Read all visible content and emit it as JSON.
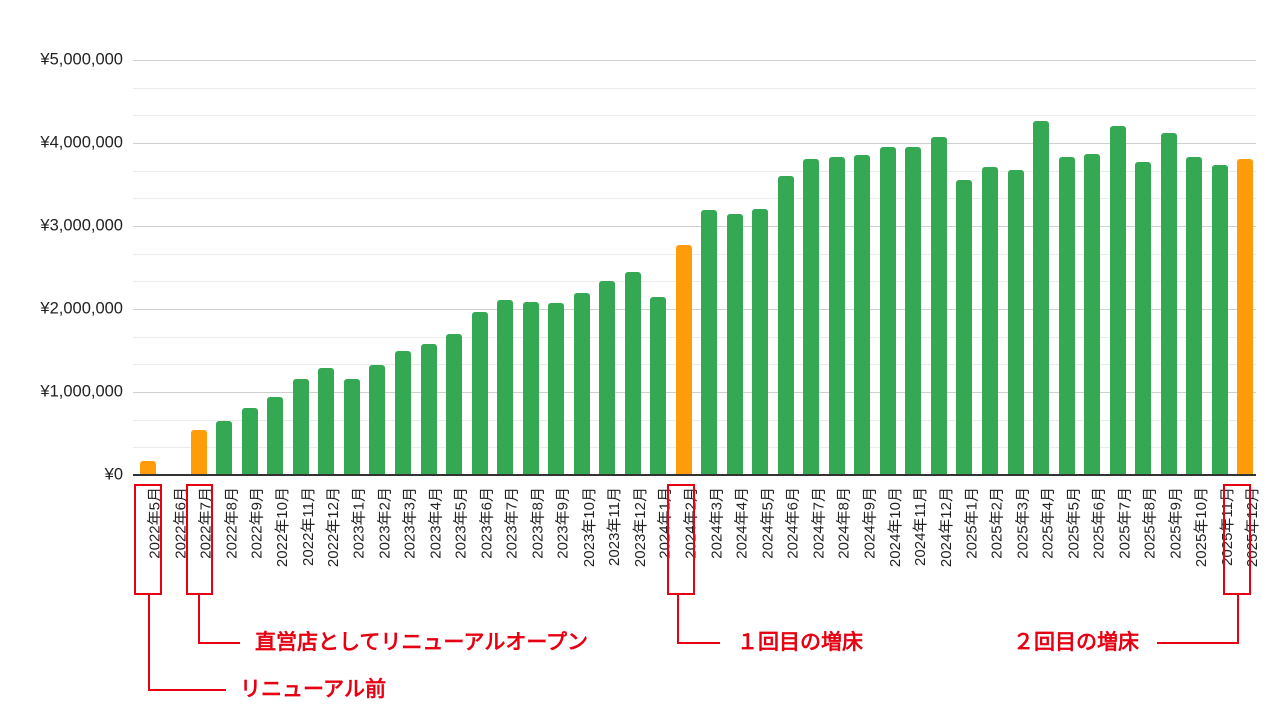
{
  "chart_data": {
    "type": "bar",
    "title": "",
    "xlabel": "",
    "ylabel": "",
    "ylim": [
      0,
      5000000
    ],
    "yticks": [
      "¥0",
      "¥1,000,000",
      "¥2,000,000",
      "¥3,000,000",
      "¥4,000,000",
      "¥5,000,000"
    ],
    "grid": true,
    "legend": null,
    "colors": {
      "normal": "#34A853",
      "highlight": "#FF9C0A",
      "annotation": "#E60012"
    },
    "categories": [
      "2022年5月",
      "2022年6月",
      "2022年7月",
      "2022年8月",
      "2022年9月",
      "2022年10月",
      "2022年11月",
      "2022年12月",
      "2023年1月",
      "2023年2月",
      "2023年3月",
      "2023年4月",
      "2023年5月",
      "2023年6月",
      "2023年7月",
      "2023年8月",
      "2023年9月",
      "2023年10月",
      "2023年11月",
      "2023年12月",
      "2024年1月",
      "2024年2月",
      "2024年3月",
      "2024年4月",
      "2024年5月",
      "2024年6月",
      "2024年7月",
      "2024年8月",
      "2024年9月",
      "2024年10月",
      "2024年11月",
      "2024年12月",
      "2025年1月",
      "2025年2月",
      "2025年3月",
      "2025年4月",
      "2025年5月",
      "2025年6月",
      "2025年7月",
      "2025年8月",
      "2025年9月",
      "2025年10月",
      "2025年11月",
      "2025年12月"
    ],
    "values": [
      170000,
      0,
      540000,
      650000,
      810000,
      940000,
      1160000,
      1290000,
      1160000,
      1330000,
      1490000,
      1580000,
      1700000,
      1960000,
      2110000,
      2090000,
      2070000,
      2190000,
      2340000,
      2440000,
      2150000,
      2770000,
      3190000,
      3140000,
      3210000,
      3600000,
      3810000,
      3830000,
      3860000,
      3950000,
      3950000,
      4070000,
      3550000,
      3710000,
      3680000,
      4260000,
      3830000,
      3870000,
      4200000,
      3770000,
      4120000,
      3830000,
      3740000,
      3810000
    ],
    "highlighted": [
      "2022年5月",
      "2022年7月",
      "2024年2月",
      "2025年12月"
    ],
    "annotations": [
      {
        "category": "2022年5月",
        "text": "リニューアル前"
      },
      {
        "category": "2022年7月",
        "text": "直営店としてリニューアルオープン"
      },
      {
        "category": "2024年2月",
        "text": "１回目の増床"
      },
      {
        "category": "2025年12月",
        "text": "２回目の増床"
      }
    ]
  }
}
